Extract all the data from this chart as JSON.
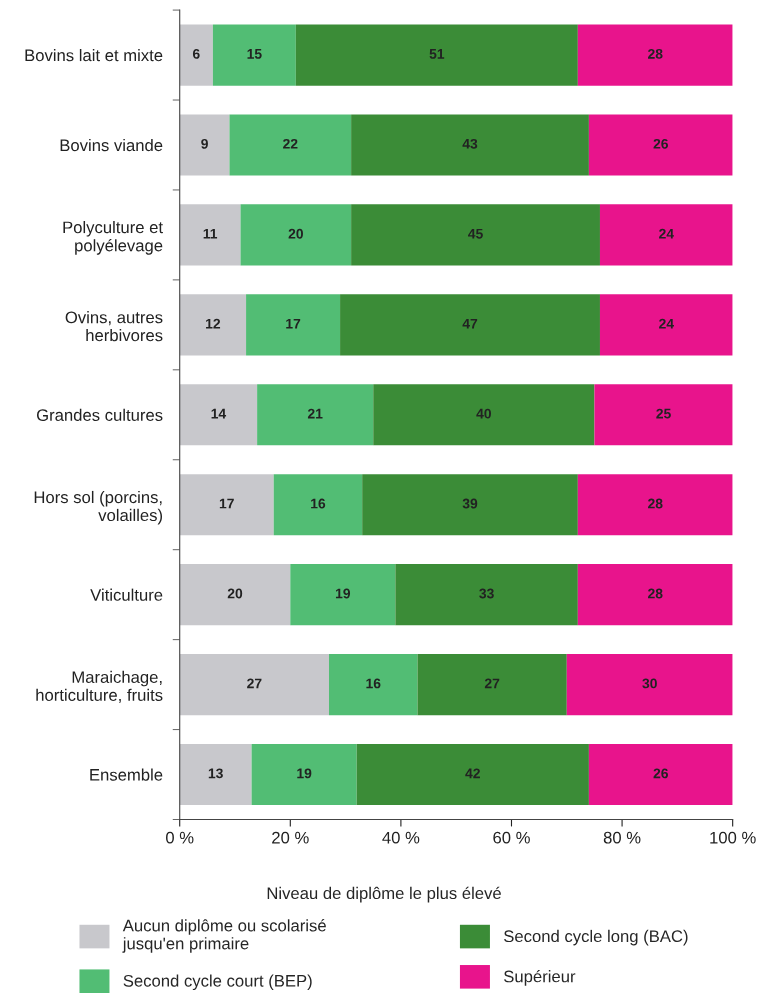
{
  "chart_data": {
    "type": "bar",
    "orientation": "horizontal",
    "stacked": true,
    "categories": [
      "Bovins lait et mixte",
      "Bovins viande",
      "Polyculture et\npolyélevage",
      "Ovins, autres\nherbivores",
      "Grandes cultures",
      "Hors sol (porcins,\nvolailles)",
      "Viticulture",
      "Maraichage,\nhorticulture, fruits",
      "Ensemble"
    ],
    "series": [
      {
        "name": "Aucun diplôme ou scolarisé\njusqu'en primaire",
        "color": "#c8c8cc",
        "values": [
          6,
          9,
          11,
          12,
          14,
          17,
          20,
          27,
          13
        ]
      },
      {
        "name": "Second cycle court (BEP)",
        "color": "#52bd74",
        "values": [
          15,
          22,
          20,
          17,
          21,
          16,
          19,
          16,
          19
        ]
      },
      {
        "name": "Second cycle long (BAC)",
        "color": "#3b8c37",
        "values": [
          51,
          43,
          45,
          47,
          40,
          39,
          33,
          27,
          42
        ]
      },
      {
        "name": "Supérieur",
        "color": "#e8148c",
        "values": [
          28,
          26,
          24,
          24,
          25,
          28,
          28,
          30,
          26
        ]
      }
    ],
    "xlim": [
      0,
      100
    ],
    "xticks": [
      {
        "value": 0,
        "label": "0 %"
      },
      {
        "value": 20,
        "label": "20 %"
      },
      {
        "value": 40,
        "label": "40 %"
      },
      {
        "value": 60,
        "label": "60 %"
      },
      {
        "value": 80,
        "label": "80 %"
      },
      {
        "value": 100,
        "label": "100 %"
      }
    ],
    "legend_title": "Niveau de diplôme le plus élevé",
    "legend": "bottom",
    "data_labels": true,
    "grid": false
  }
}
